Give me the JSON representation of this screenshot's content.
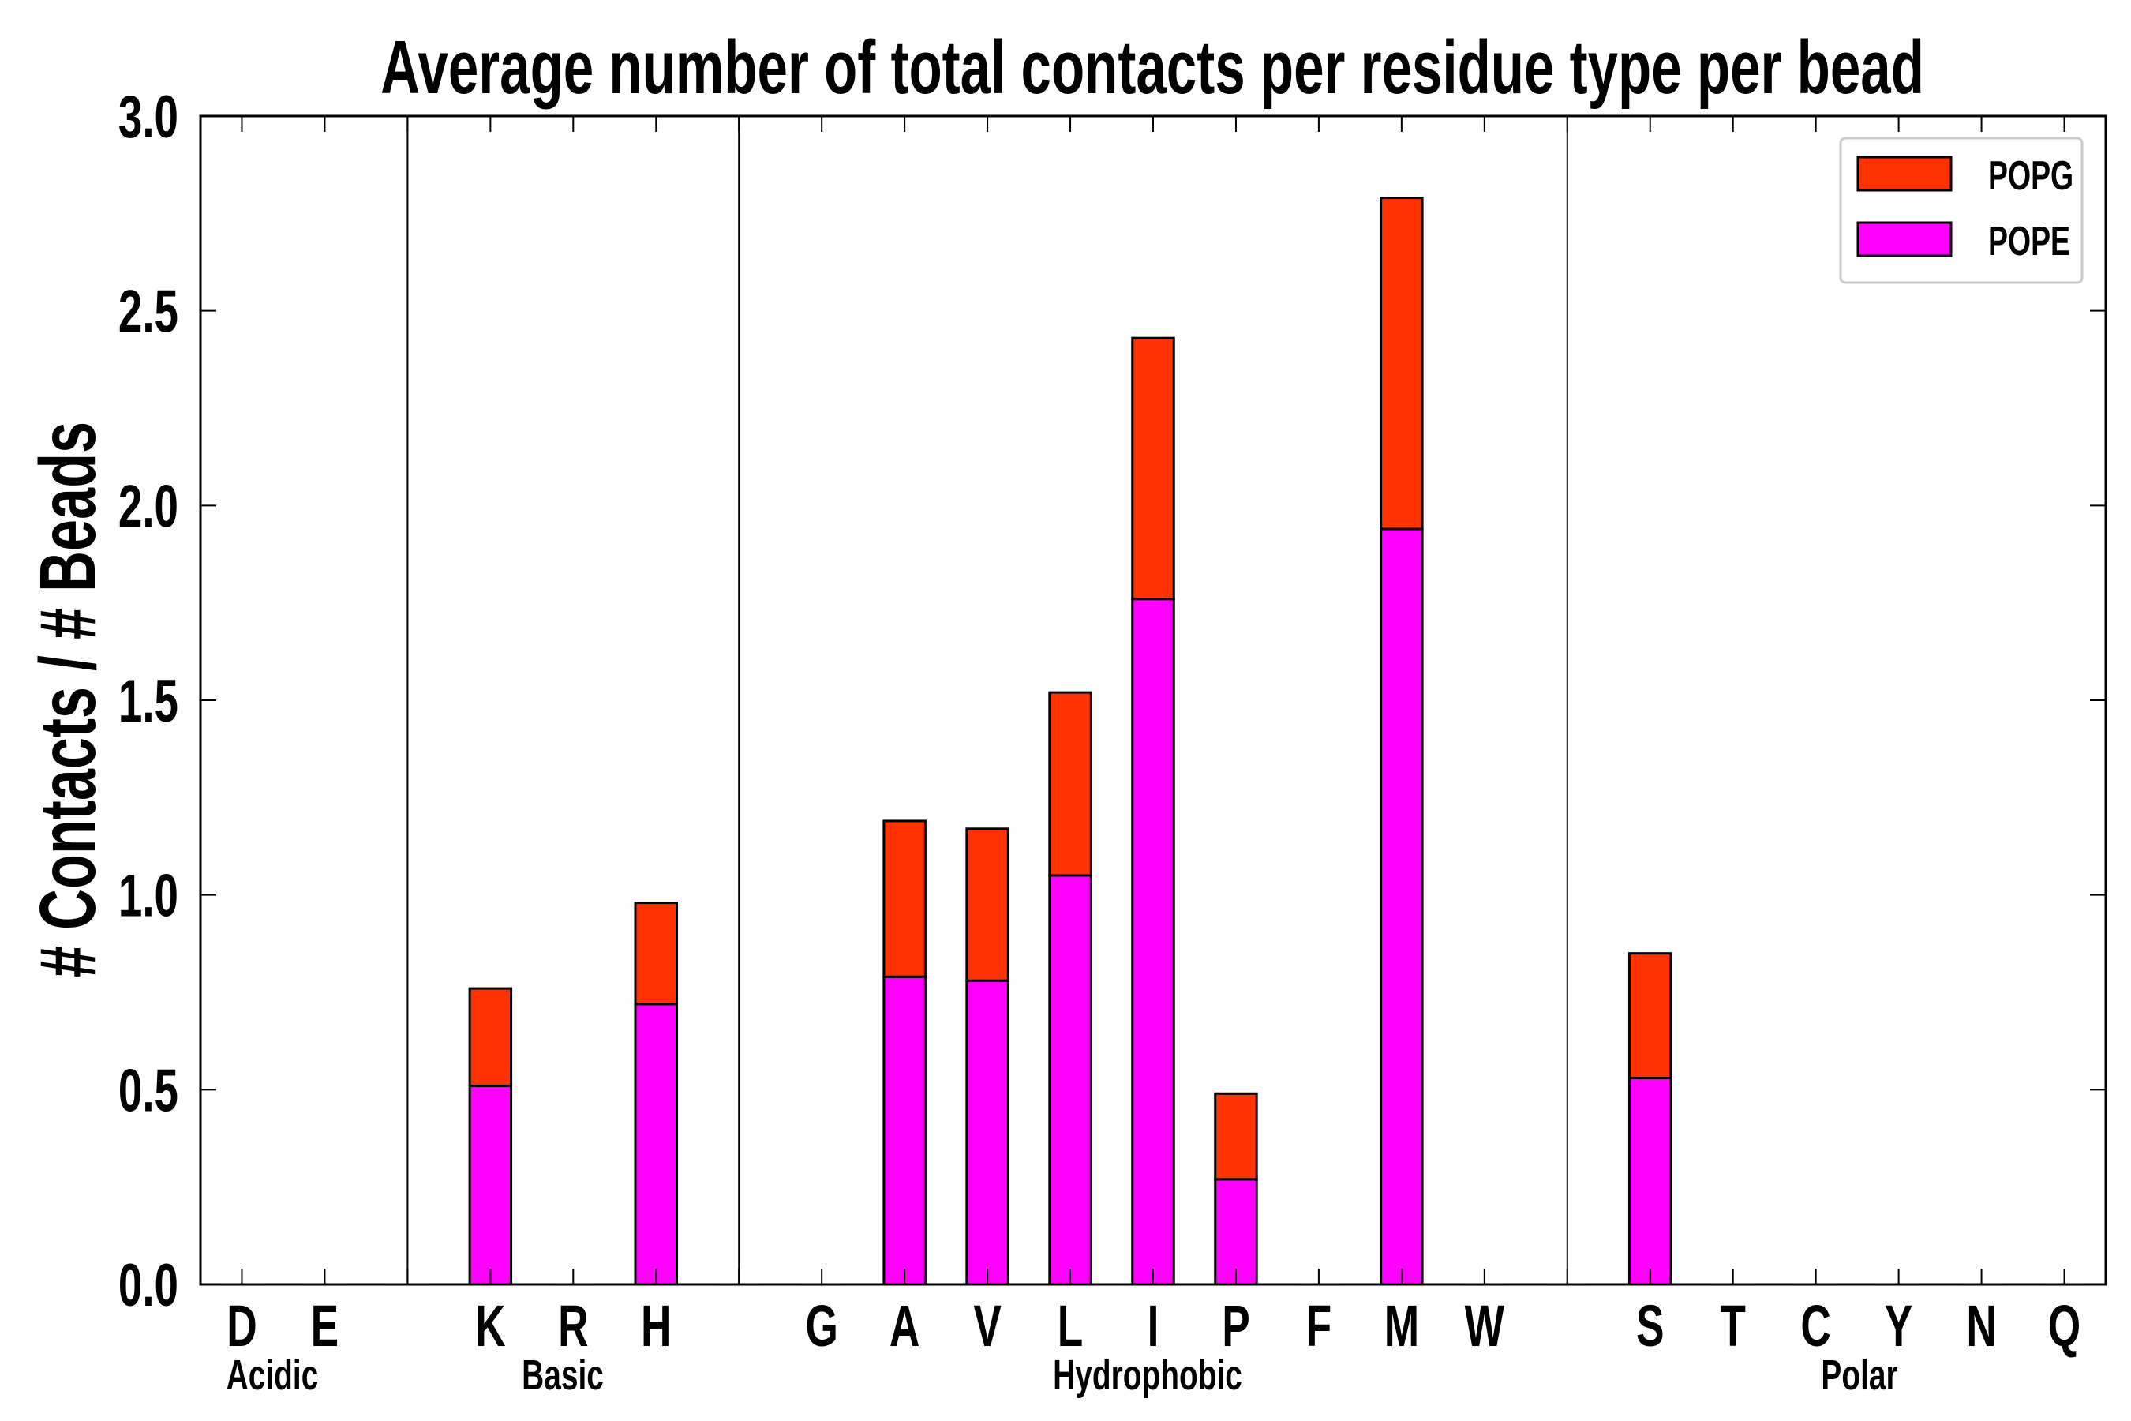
{
  "chart_data": {
    "type": "bar",
    "stacked": true,
    "title": "Average number of total contacts per residue type per bead",
    "xlabel": "",
    "ylabel": "# Contacts / # Beads",
    "ylim": [
      0,
      3.0
    ],
    "yticks": [
      "0.0",
      "0.5",
      "1.0",
      "1.5",
      "2.0",
      "2.5",
      "3.0"
    ],
    "grid": false,
    "legend_position": "top-right",
    "categories": [
      "D",
      "E",
      "",
      "K",
      "R",
      "H",
      "",
      "G",
      "A",
      "V",
      "L",
      "I",
      "P",
      "F",
      "M",
      "W",
      "",
      "S",
      "T",
      "C",
      "Y",
      "N",
      "Q"
    ],
    "separators": [
      2,
      6,
      16
    ],
    "groups": [
      {
        "name": "Acidic"
      },
      {
        "name": "Basic"
      },
      {
        "name": "Hydrophobic"
      },
      {
        "name": "Polar"
      }
    ],
    "series": [
      {
        "name": "POPE",
        "color": "#ff00ff",
        "values": [
          0,
          0,
          0,
          0.51,
          0,
          0.72,
          0,
          0,
          0.79,
          0.78,
          1.05,
          1.76,
          0.27,
          0,
          1.94,
          0,
          0,
          0.53,
          0,
          0,
          0,
          0,
          0
        ]
      },
      {
        "name": "POPG",
        "color": "#ff3300",
        "values": [
          0,
          0,
          0,
          0.25,
          0,
          0.26,
          0,
          0,
          0.4,
          0.39,
          0.47,
          0.67,
          0.22,
          0,
          0.85,
          0,
          0,
          0.32,
          0,
          0,
          0,
          0,
          0
        ]
      }
    ],
    "legend_order": [
      "POPG",
      "POPE"
    ]
  }
}
